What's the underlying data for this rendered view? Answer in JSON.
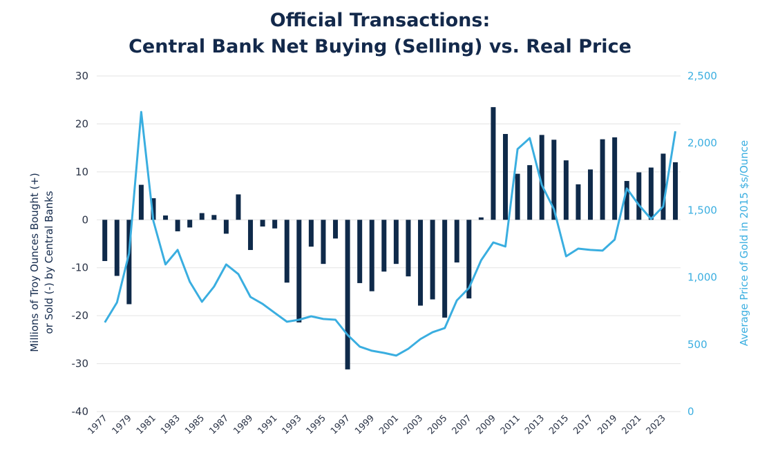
{
  "chart_data": {
    "type": "bar+line",
    "title_line1": "Official Transactions:",
    "title_line2": "Central Bank Net Buying (Selling) vs. Real Price",
    "ylabel_left_line1": "Millions of Troy Ounces Bought (+)",
    "ylabel_left_line2": "or Sold (-) by Central Banks",
    "ylabel_right": "Average Price of Gold in 2015 $s/Ounce",
    "ylim_left": [
      -40,
      30
    ],
    "ylim_right": [
      0,
      2500
    ],
    "yticks_left": [
      "30",
      "20",
      "10",
      "0",
      "-10",
      "-20",
      "-30",
      "-40"
    ],
    "yticks_right": [
      "2,500",
      "2,000",
      "1,500",
      "1,000",
      "500",
      "0"
    ],
    "xtick_labels": [
      "1977",
      "1979",
      "1981",
      "1983",
      "1985",
      "1987",
      "1989",
      "1991",
      "1993",
      "1995",
      "1997",
      "1999",
      "2001",
      "2003",
      "2005",
      "2007",
      "2009",
      "2011",
      "2013",
      "2015",
      "2017",
      "2019",
      "2021",
      "2023"
    ],
    "grid": true,
    "colors": {
      "bars": "#0f2a4a",
      "line": "#3aaee0",
      "title": "#13294b"
    },
    "years": [
      1977,
      1978,
      1979,
      1980,
      1981,
      1982,
      1983,
      1984,
      1985,
      1986,
      1987,
      1988,
      1989,
      1990,
      1991,
      1992,
      1993,
      1994,
      1995,
      1996,
      1997,
      1998,
      1999,
      2000,
      2001,
      2002,
      2003,
      2004,
      2005,
      2006,
      2007,
      2008,
      2009,
      2010,
      2011,
      2012,
      2013,
      2014,
      2015,
      2016,
      2017,
      2018,
      2019,
      2020,
      2021,
      2022,
      2023,
      2024
    ],
    "series": [
      {
        "axis": "left",
        "kind": "bar",
        "values": [
          -8.6,
          -11.7,
          -17.6,
          7.3,
          4.5,
          0.9,
          -2.4,
          -1.6,
          1.4,
          1.0,
          -2.9,
          5.3,
          -6.3,
          -1.4,
          -1.8,
          -13.1,
          -21.4,
          -5.6,
          -9.2,
          -3.9,
          -31.2,
          -13.2,
          -14.9,
          -10.8,
          -9.2,
          -11.8,
          -17.9,
          -16.6,
          -20.4,
          -8.9,
          -16.4,
          0.5,
          23.5,
          17.9,
          9.6,
          11.4,
          17.7,
          16.7,
          12.4,
          7.4,
          10.5,
          16.8,
          17.2,
          8.1,
          9.9,
          10.9,
          13.8,
          12.0
        ]
      },
      {
        "axis": "right",
        "kind": "line",
        "values": [
          664,
          813,
          1178,
          2232,
          1420,
          1096,
          1204,
          967,
          818,
          931,
          1096,
          1024,
          854,
          802,
          735,
          669,
          684,
          710,
          690,
          684,
          571,
          484,
          453,
          437,
          417,
          468,
          540,
          591,
          622,
          828,
          921,
          1127,
          1260,
          1230,
          1955,
          2037,
          1687,
          1507,
          1157,
          1214,
          1204,
          1199,
          1281,
          1662,
          1538,
          1435,
          1528,
          2088
        ]
      }
    ]
  }
}
